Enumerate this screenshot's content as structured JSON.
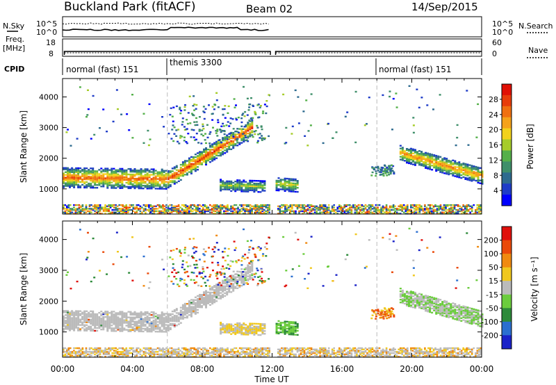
{
  "header": {
    "station": "Buckland Park (fitACF)",
    "beam": "Beam 02",
    "date": "14/Sep/2015"
  },
  "left_labels": {
    "nsky": "N.Sky",
    "freq_line1": "Freq.",
    "freq_line2": "[MHz]",
    "cpid": "CPID"
  },
  "right_labels": {
    "nsearch": "N.Search",
    "nave": "Nave"
  },
  "noise_panel": {
    "left_ticks": [
      "10^5",
      "10^0"
    ],
    "right_ticks": [
      "10^5",
      "10^0"
    ]
  },
  "freq_panel": {
    "left_ticks": [
      "18",
      "8"
    ],
    "right_ticks": [
      "60",
      "0"
    ]
  },
  "cpid_segments": [
    {
      "label": "normal (fast) 151",
      "start_hour": 0
    },
    {
      "label": "themis 3300",
      "start_hour": 6
    },
    {
      "label": "normal (fast) 151",
      "start_hour": 18
    }
  ],
  "x_axis": {
    "label": "Time UT",
    "ticks": [
      "00:00",
      "04:00",
      "08:00",
      "12:00",
      "16:00",
      "20:00",
      "00:00"
    ]
  },
  "y_axis": {
    "label": "Slant Range [km]",
    "ticks": [
      "1000",
      "2000",
      "3000",
      "4000"
    ]
  },
  "power_colorbar": {
    "label": "Power [dB]",
    "ticks": [
      "4",
      "8",
      "12",
      "16",
      "20",
      "24",
      "28"
    ],
    "colors": [
      "#0000ff",
      "#1e3cc8",
      "#2e6b8f",
      "#3f8f6a",
      "#55b04a",
      "#a6cc2a",
      "#f2d21c",
      "#f5a21a",
      "#f07010",
      "#e83c0a",
      "#e01004"
    ]
  },
  "velocity_colorbar": {
    "label": "Velocity [m s⁻¹]",
    "ticks": [
      "200",
      "100",
      "50",
      "15",
      "-15",
      "-50",
      "-100",
      "-200"
    ],
    "colors": [
      "#1a22c8",
      "#2b6fd0",
      "#2d8a3a",
      "#6bcc3d",
      "#bbbbbb",
      "#f0c81e",
      "#f08a10",
      "#ea4a0a",
      "#e0100c"
    ]
  },
  "chart_data": {
    "type": "heatmap",
    "panels": [
      {
        "name": "Power",
        "colorbar_label": "Power [dB]",
        "crange": [
          0,
          32
        ],
        "x_range_hours": [
          0,
          24
        ],
        "y_range_km": [
          180,
          4600
        ],
        "features": [
          {
            "t0": 0.0,
            "t1": 6.0,
            "r_center": [
              1400,
              1350
            ],
            "r_halfwidth": 320,
            "power_peak": 26
          },
          {
            "t0": 6.0,
            "t1": 10.9,
            "r_center": [
              1350,
              3050
            ],
            "r_halfwidth": 280,
            "power_peak": 28
          },
          {
            "t0": 9.0,
            "t1": 11.6,
            "r_center": [
              1150,
              1100
            ],
            "r_halfwidth": 180,
            "power_peak": 16
          },
          {
            "t0": 12.2,
            "t1": 13.4,
            "r_center": [
              1200,
              1150
            ],
            "r_halfwidth": 220,
            "power_peak": 18
          },
          {
            "t0": 19.3,
            "t1": 24.0,
            "r_center": [
              2200,
              1450
            ],
            "r_halfwidth": 260,
            "power_peak": 24
          }
        ]
      },
      {
        "name": "Velocity",
        "colorbar_label": "Velocity [m s⁻¹]",
        "crange": [
          -250,
          250
        ],
        "x_range_hours": [
          0,
          24
        ],
        "y_range_km": [
          180,
          4600
        ]
      }
    ]
  }
}
